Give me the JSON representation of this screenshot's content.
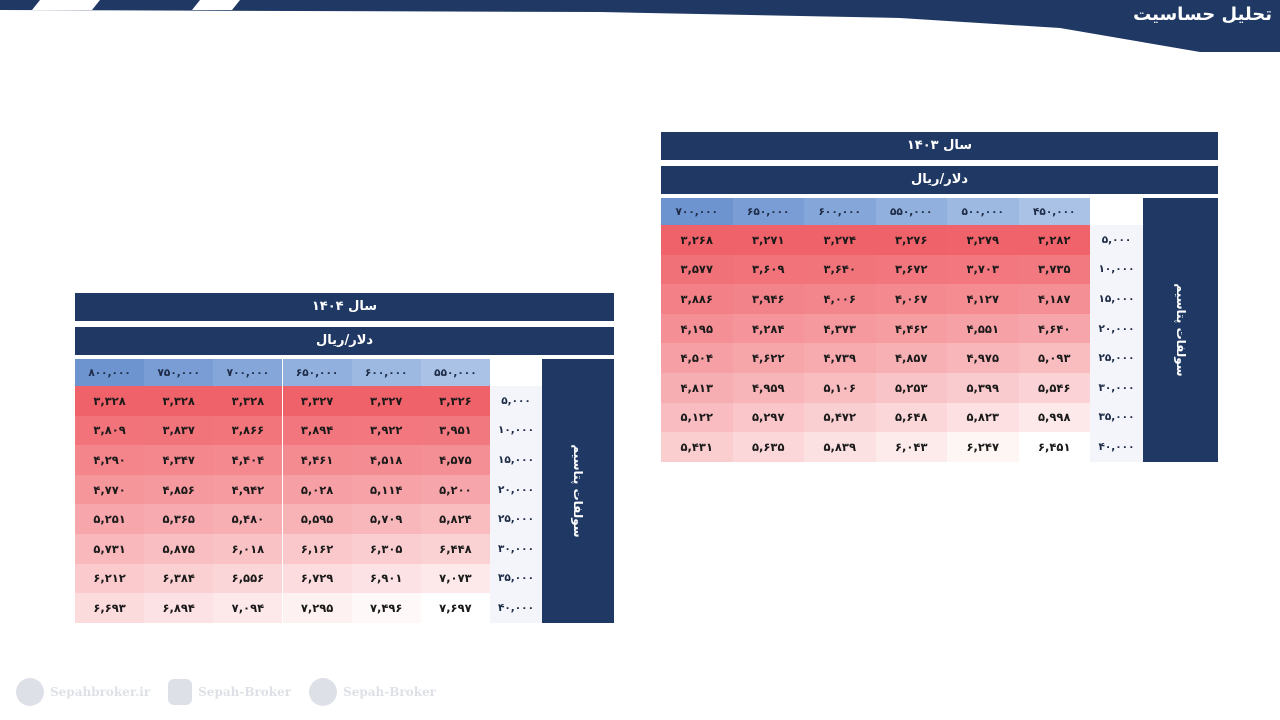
{
  "header": {
    "title": "تحلیل حساسیت"
  },
  "tables": [
    {
      "id": "t1403",
      "year_label": "سال ۱۴۰۳",
      "unit_label": "دلار/ریال",
      "side_label": "سولفات پتاسیم",
      "columns": [
        "۴۵۰,۰۰۰",
        "۵۰۰,۰۰۰",
        "۵۵۰,۰۰۰",
        "۶۰۰,۰۰۰",
        "۶۵۰,۰۰۰",
        "۷۰۰,۰۰۰"
      ],
      "rows": [
        "۵,۰۰۰",
        "۱۰,۰۰۰",
        "۱۵,۰۰۰",
        "۲۰,۰۰۰",
        "۲۵,۰۰۰",
        "۳۰,۰۰۰",
        "۳۵,۰۰۰",
        "۴۰,۰۰۰"
      ],
      "cells": [
        [
          "۳,۲۸۲",
          "۳,۲۷۹",
          "۳,۲۷۶",
          "۳,۲۷۴",
          "۳,۲۷۱",
          "۳,۲۶۸"
        ],
        [
          "۳,۷۳۵",
          "۳,۷۰۳",
          "۳,۶۷۲",
          "۳,۶۴۰",
          "۳,۶۰۹",
          "۳,۵۷۷"
        ],
        [
          "۴,۱۸۷",
          "۴,۱۲۷",
          "۴,۰۶۷",
          "۴,۰۰۶",
          "۳,۹۴۶",
          "۳,۸۸۶"
        ],
        [
          "۴,۶۴۰",
          "۴,۵۵۱",
          "۴,۴۶۲",
          "۴,۳۷۳",
          "۴,۲۸۴",
          "۴,۱۹۵"
        ],
        [
          "۵,۰۹۳",
          "۴,۹۷۵",
          "۴,۸۵۷",
          "۴,۷۳۹",
          "۴,۶۲۲",
          "۴,۵۰۴"
        ],
        [
          "۵,۵۴۶",
          "۵,۳۹۹",
          "۵,۲۵۳",
          "۵,۱۰۶",
          "۴,۹۵۹",
          "۴,۸۱۳"
        ],
        [
          "۵,۹۹۸",
          "۵,۸۲۳",
          "۵,۶۴۸",
          "۵,۴۷۲",
          "۵,۲۹۷",
          "۵,۱۲۲"
        ],
        [
          "۶,۴۵۱",
          "۶,۲۴۷",
          "۶,۰۴۳",
          "۵,۸۳۹",
          "۵,۶۳۵",
          "۵,۴۳۱"
        ]
      ],
      "cell_values": [
        [
          3282,
          3279,
          3276,
          3274,
          3271,
          3268
        ],
        [
          3735,
          3703,
          3672,
          3640,
          3609,
          3577
        ],
        [
          4187,
          4127,
          4067,
          4006,
          3946,
          3886
        ],
        [
          4640,
          4551,
          4462,
          4373,
          4284,
          4195
        ],
        [
          5093,
          4975,
          4857,
          4739,
          4622,
          4504
        ],
        [
          5546,
          5399,
          5253,
          5106,
          4959,
          4813
        ],
        [
          5998,
          5823,
          5648,
          5472,
          5297,
          5122
        ],
        [
          6451,
          6247,
          6043,
          5839,
          5635,
          5431
        ]
      ]
    },
    {
      "id": "t1404",
      "year_label": "سال ۱۴۰۴",
      "unit_label": "دلار/ریال",
      "side_label": "سولفات پتاسیم",
      "columns": [
        "۵۵۰,۰۰۰",
        "۶۰۰,۰۰۰",
        "۶۵۰,۰۰۰",
        "۷۰۰,۰۰۰",
        "۷۵۰,۰۰۰",
        "۸۰۰,۰۰۰"
      ],
      "rows": [
        "۵,۰۰۰",
        "۱۰,۰۰۰",
        "۱۵,۰۰۰",
        "۲۰,۰۰۰",
        "۲۵,۰۰۰",
        "۳۰,۰۰۰",
        "۳۵,۰۰۰",
        "۴۰,۰۰۰"
      ],
      "cells": [
        [
          "۳,۳۲۶",
          "۳,۳۲۷",
          "۳,۳۲۷",
          "۳,۳۲۸",
          "۳,۳۲۸",
          "۳,۳۲۸"
        ],
        [
          "۳,۹۵۱",
          "۳,۹۲۲",
          "۳,۸۹۴",
          "۳,۸۶۶",
          "۳,۸۳۷",
          "۳,۸۰۹"
        ],
        [
          "۴,۵۷۵",
          "۴,۵۱۸",
          "۴,۴۶۱",
          "۴,۴۰۴",
          "۴,۳۴۷",
          "۴,۲۹۰"
        ],
        [
          "۵,۲۰۰",
          "۵,۱۱۴",
          "۵,۰۲۸",
          "۴,۹۴۲",
          "۴,۸۵۶",
          "۴,۷۷۰"
        ],
        [
          "۵,۸۲۴",
          "۵,۷۰۹",
          "۵,۵۹۵",
          "۵,۴۸۰",
          "۵,۳۶۵",
          "۵,۲۵۱"
        ],
        [
          "۶,۴۴۸",
          "۶,۳۰۵",
          "۶,۱۶۲",
          "۶,۰۱۸",
          "۵,۸۷۵",
          "۵,۷۳۱"
        ],
        [
          "۷,۰۷۳",
          "۶,۹۰۱",
          "۶,۷۲۹",
          "۶,۵۵۶",
          "۶,۳۸۴",
          "۶,۲۱۲"
        ],
        [
          "۷,۶۹۷",
          "۷,۴۹۶",
          "۷,۲۹۵",
          "۷,۰۹۴",
          "۶,۸۹۴",
          "۶,۶۹۳"
        ]
      ],
      "cell_values": [
        [
          3326,
          3327,
          3327,
          3328,
          3328,
          3328
        ],
        [
          3951,
          3922,
          3894,
          3866,
          3837,
          3809
        ],
        [
          4575,
          4518,
          4461,
          4404,
          4347,
          4290
        ],
        [
          5200,
          5114,
          5028,
          4942,
          4856,
          4770
        ],
        [
          5824,
          5709,
          5595,
          5480,
          5365,
          5251
        ],
        [
          6448,
          6305,
          6162,
          6018,
          5875,
          5731
        ],
        [
          7073,
          6901,
          6729,
          6556,
          6384,
          6212
        ],
        [
          7697,
          7496,
          7295,
          7094,
          6894,
          6693
        ]
      ]
    }
  ],
  "footer": {
    "website": "Sepahbroker.ir",
    "instagram": "Sepah-Broker",
    "telegram": "Sepah-Broker"
  },
  "colors": {
    "navy": "#1f3864",
    "heat_high": "#f0626a",
    "heat_low": "#ffffff",
    "col_header_dark": "#6d94cf",
    "col_header_light": "#a9c2e6"
  }
}
